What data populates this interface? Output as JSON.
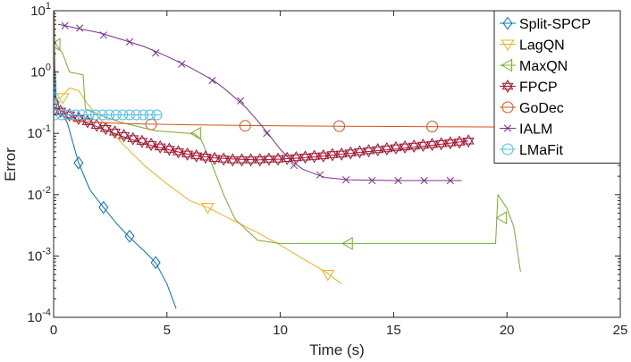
{
  "chart_data": {
    "type": "line",
    "title": "",
    "xlabel": "Time (s)",
    "ylabel": "Error",
    "xlim": [
      0,
      25
    ],
    "ylim": [
      0.0001,
      10
    ],
    "yscale": "log",
    "grid": false,
    "legend_position": "top-right",
    "x_ticks": [
      "0",
      "5",
      "10",
      "15",
      "20",
      "25"
    ],
    "y_ticks": [
      {
        "value": 0.0001,
        "base": "10",
        "exp": "-4"
      },
      {
        "value": 0.001,
        "base": "10",
        "exp": "-3"
      },
      {
        "value": 0.01,
        "base": "10",
        "exp": "-2"
      },
      {
        "value": 0.1,
        "base": "10",
        "exp": "-1"
      },
      {
        "value": 1,
        "base": "10",
        "exp": "0"
      },
      {
        "value": 10,
        "base": "10",
        "exp": "1"
      }
    ],
    "series": [
      {
        "name": "Split-SPCP",
        "color": "#0072BD",
        "marker": "diamond",
        "points": [
          [
            0.02,
            10
          ],
          [
            0.05,
            1.5
          ],
          [
            0.1,
            0.4
          ],
          [
            0.3,
            0.22
          ],
          [
            0.6,
            0.15
          ],
          [
            1.1,
            0.033
          ],
          [
            1.6,
            0.012
          ],
          [
            2.2,
            0.0062
          ],
          [
            2.8,
            0.0033
          ],
          [
            3.3,
            0.0021
          ],
          [
            4.0,
            0.0012
          ],
          [
            4.5,
            0.00078
          ],
          [
            5.0,
            0.00035
          ],
          [
            5.4,
            0.00014
          ]
        ],
        "markers": [
          [
            0.05,
            0.32
          ],
          [
            1.1,
            0.033
          ],
          [
            2.2,
            0.0062
          ],
          [
            3.35,
            0.0021
          ],
          [
            4.5,
            0.00078
          ]
        ]
      },
      {
        "name": "LagQN",
        "color": "#EDB120",
        "marker": "triangle-down",
        "points": [
          [
            0.0,
            0.35
          ],
          [
            0.3,
            0.38
          ],
          [
            0.7,
            0.55
          ],
          [
            1.1,
            0.5
          ],
          [
            1.5,
            0.3
          ],
          [
            2.0,
            0.18
          ],
          [
            3.0,
            0.07
          ],
          [
            4.0,
            0.03
          ],
          [
            5.0,
            0.015
          ],
          [
            6.0,
            0.008
          ],
          [
            6.8,
            0.0062
          ],
          [
            7.8,
            0.004
          ],
          [
            9.0,
            0.0024
          ],
          [
            10.0,
            0.0015
          ],
          [
            11.0,
            0.0009
          ],
          [
            12.0,
            0.00055
          ],
          [
            12.7,
            0.00035
          ]
        ],
        "markers": [
          [
            0.4,
            0.38
          ],
          [
            6.8,
            0.0062
          ],
          [
            12.1,
            0.0005
          ]
        ]
      },
      {
        "name": "MaxQN",
        "color": "#77AC30",
        "marker": "triangle-left",
        "points": [
          [
            0.02,
            10
          ],
          [
            0.05,
            3.0
          ],
          [
            0.4,
            2.0
          ],
          [
            0.7,
            1.0
          ],
          [
            1.3,
            0.9
          ],
          [
            1.4,
            0.25
          ],
          [
            2.0,
            0.2
          ],
          [
            3.0,
            0.15
          ],
          [
            4.5,
            0.11
          ],
          [
            6.0,
            0.1
          ],
          [
            6.2,
            0.1
          ],
          [
            6.5,
            0.08
          ],
          [
            7.0,
            0.03
          ],
          [
            7.5,
            0.01
          ],
          [
            8.0,
            0.004
          ],
          [
            9.0,
            0.0018
          ],
          [
            10.0,
            0.0016
          ],
          [
            13.0,
            0.0016
          ],
          [
            16.0,
            0.0016
          ],
          [
            19.5,
            0.0016
          ],
          [
            19.6,
            0.01
          ],
          [
            20.0,
            0.006
          ],
          [
            20.3,
            0.003
          ],
          [
            20.6,
            0.00055
          ]
        ],
        "markers": [
          [
            0.1,
            2.8
          ],
          [
            6.3,
            0.1
          ],
          [
            13.0,
            0.0016
          ],
          [
            19.8,
            0.0042
          ]
        ]
      },
      {
        "name": "FPCP",
        "color": "#A2142F",
        "marker": "hexagram",
        "points": [
          [
            0.1,
            0.26
          ],
          [
            1.0,
            0.17
          ],
          [
            2.0,
            0.125
          ],
          [
            3.0,
            0.09
          ],
          [
            4.0,
            0.068
          ],
          [
            5.0,
            0.055
          ],
          [
            6.0,
            0.045
          ],
          [
            7.0,
            0.04
          ],
          [
            8.0,
            0.038
          ],
          [
            9.0,
            0.037
          ],
          [
            10.0,
            0.038
          ],
          [
            11.0,
            0.04
          ],
          [
            12.0,
            0.043
          ],
          [
            13.0,
            0.047
          ],
          [
            14.0,
            0.051
          ],
          [
            15.0,
            0.055
          ],
          [
            16.0,
            0.06
          ],
          [
            17.0,
            0.066
          ],
          [
            18.3,
            0.075
          ]
        ],
        "markers": [
          [
            0.3,
            0.23
          ],
          [
            0.7,
            0.2
          ],
          [
            1.1,
            0.175
          ],
          [
            1.5,
            0.155
          ],
          [
            1.9,
            0.135
          ],
          [
            2.3,
            0.12
          ],
          [
            2.7,
            0.105
          ],
          [
            3.1,
            0.092
          ],
          [
            3.5,
            0.082
          ],
          [
            3.9,
            0.074
          ],
          [
            4.3,
            0.066
          ],
          [
            4.7,
            0.06
          ],
          [
            5.1,
            0.055
          ],
          [
            5.5,
            0.05
          ],
          [
            5.9,
            0.046
          ],
          [
            6.3,
            0.043
          ],
          [
            6.7,
            0.041
          ],
          [
            7.1,
            0.039
          ],
          [
            7.5,
            0.038
          ],
          [
            7.9,
            0.037
          ],
          [
            8.3,
            0.037
          ],
          [
            8.7,
            0.037
          ],
          [
            9.1,
            0.037
          ],
          [
            9.5,
            0.038
          ],
          [
            9.9,
            0.038
          ],
          [
            10.3,
            0.039
          ],
          [
            10.7,
            0.04
          ],
          [
            11.1,
            0.041
          ],
          [
            11.5,
            0.042
          ],
          [
            11.9,
            0.043
          ],
          [
            12.3,
            0.045
          ],
          [
            12.7,
            0.046
          ],
          [
            13.1,
            0.048
          ],
          [
            13.5,
            0.05
          ],
          [
            13.9,
            0.052
          ],
          [
            14.3,
            0.054
          ],
          [
            14.7,
            0.056
          ],
          [
            15.1,
            0.058
          ],
          [
            15.5,
            0.06
          ],
          [
            15.9,
            0.062
          ],
          [
            16.3,
            0.064
          ],
          [
            16.7,
            0.066
          ],
          [
            17.1,
            0.068
          ],
          [
            17.5,
            0.07
          ],
          [
            17.9,
            0.072
          ],
          [
            18.3,
            0.075
          ]
        ]
      },
      {
        "name": "GoDec",
        "color": "#D95319",
        "marker": "circle",
        "points": [
          [
            0.02,
            10
          ],
          [
            0.05,
            0.4
          ],
          [
            0.2,
            0.22
          ],
          [
            0.5,
            0.18
          ],
          [
            1.0,
            0.16
          ],
          [
            2.0,
            0.15
          ],
          [
            3.0,
            0.145
          ],
          [
            4.0,
            0.142
          ],
          [
            6.0,
            0.138
          ],
          [
            8.0,
            0.135
          ],
          [
            10.0,
            0.133
          ],
          [
            12.0,
            0.131
          ],
          [
            14.0,
            0.13
          ],
          [
            16.0,
            0.129
          ],
          [
            18.0,
            0.128
          ],
          [
            20.0,
            0.127
          ],
          [
            22.0,
            0.127
          ],
          [
            24.0,
            0.126
          ],
          [
            25.0,
            0.126
          ]
        ],
        "markers": [
          [
            4.3,
            0.14
          ],
          [
            8.45,
            0.133
          ],
          [
            12.6,
            0.131
          ],
          [
            16.7,
            0.129
          ],
          [
            20.8,
            0.127
          ]
        ]
      },
      {
        "name": "IALM",
        "color": "#7E2F8E",
        "marker": "x",
        "points": [
          [
            0.2,
            6.0
          ],
          [
            0.6,
            5.6
          ],
          [
            1.0,
            5.2
          ],
          [
            2.0,
            4.4
          ],
          [
            3.0,
            3.4
          ],
          [
            4.0,
            2.6
          ],
          [
            5.0,
            1.8
          ],
          [
            6.0,
            1.2
          ],
          [
            7.0,
            0.75
          ],
          [
            7.5,
            0.55
          ],
          [
            8.0,
            0.38
          ],
          [
            8.5,
            0.26
          ],
          [
            9.0,
            0.16
          ],
          [
            9.5,
            0.095
          ],
          [
            10.0,
            0.055
          ],
          [
            10.5,
            0.035
          ],
          [
            11.0,
            0.026
          ],
          [
            11.5,
            0.022
          ],
          [
            12.0,
            0.019
          ],
          [
            13.0,
            0.0175
          ],
          [
            15.0,
            0.017
          ],
          [
            18.0,
            0.017
          ]
        ],
        "markers": [
          [
            0.5,
            5.7
          ],
          [
            1.15,
            5.2
          ],
          [
            2.2,
            4.0
          ],
          [
            3.35,
            3.1
          ],
          [
            4.5,
            2.05
          ],
          [
            5.65,
            1.35
          ],
          [
            7.0,
            0.73
          ],
          [
            8.25,
            0.34
          ],
          [
            9.4,
            0.1
          ],
          [
            10.6,
            0.03
          ],
          [
            11.75,
            0.021
          ],
          [
            12.9,
            0.0175
          ],
          [
            14.05,
            0.017
          ],
          [
            15.2,
            0.017
          ],
          [
            16.35,
            0.017
          ],
          [
            17.5,
            0.017
          ]
        ]
      },
      {
        "name": "LMaFit",
        "color": "#4DBEEE",
        "marker": "circle",
        "points": [
          [
            0.0,
            10
          ],
          [
            0.02,
            0.2
          ],
          [
            4.75,
            0.2
          ]
        ],
        "markers": [
          [
            0.05,
            0.2
          ],
          [
            0.35,
            0.2
          ],
          [
            0.65,
            0.2
          ],
          [
            0.95,
            0.2
          ],
          [
            1.25,
            0.2
          ],
          [
            1.55,
            0.2
          ],
          [
            1.85,
            0.2
          ],
          [
            2.15,
            0.2
          ],
          [
            2.45,
            0.2
          ],
          [
            2.75,
            0.2
          ],
          [
            3.05,
            0.2
          ],
          [
            3.35,
            0.2
          ],
          [
            3.65,
            0.2
          ],
          [
            3.95,
            0.2
          ],
          [
            4.25,
            0.2
          ],
          [
            4.55,
            0.2
          ]
        ]
      }
    ]
  }
}
